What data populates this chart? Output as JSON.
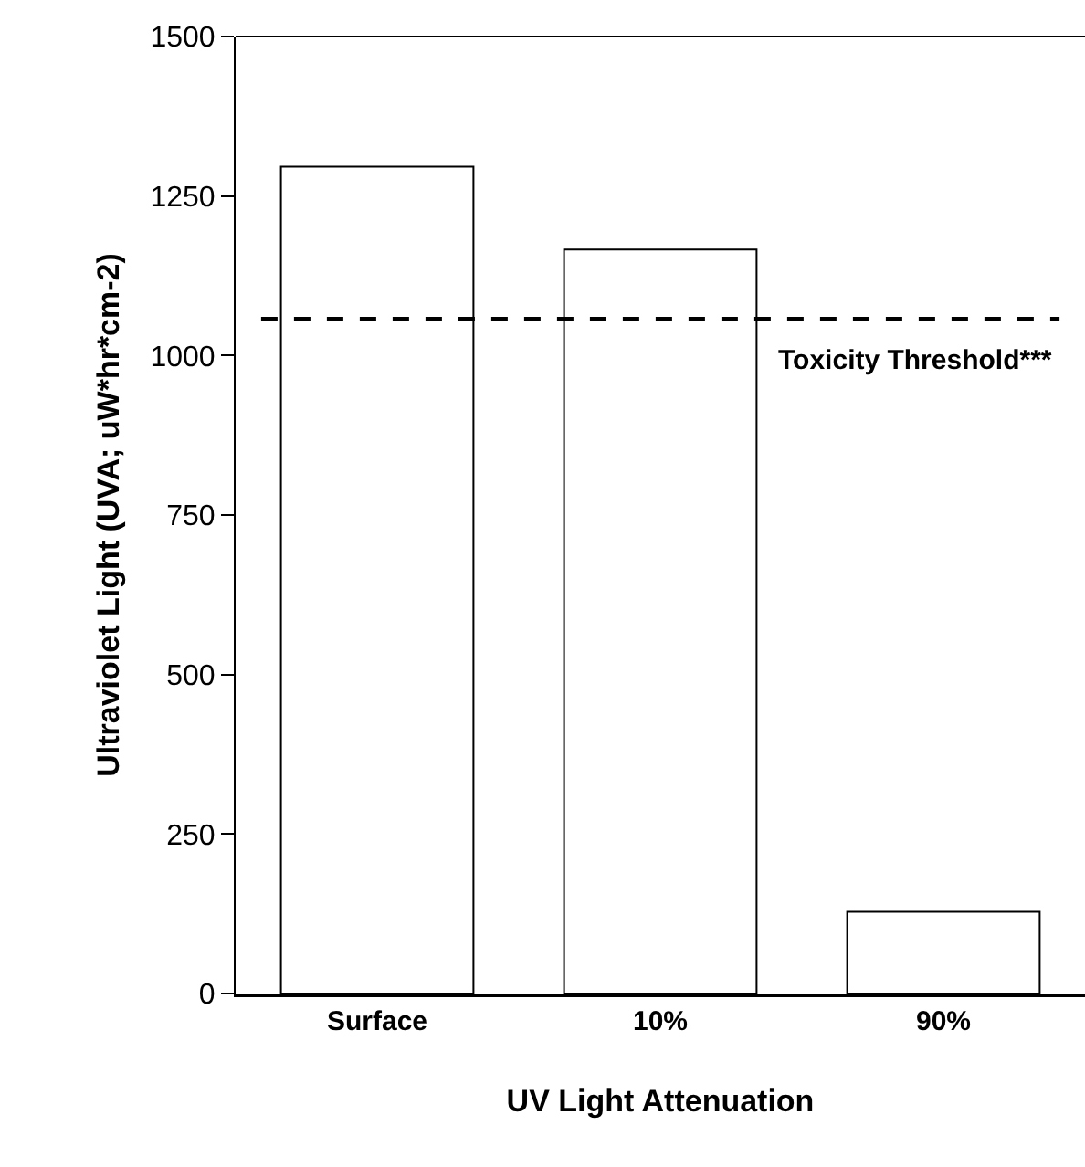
{
  "chart_data": {
    "type": "bar",
    "xlabel": "UV Light Attenuation",
    "ylabel": "Ultraviolet Light (UVA; uW*hr*cm-2)",
    "categories": [
      "Surface",
      "10%",
      "90%"
    ],
    "values": [
      1296,
      1166,
      128
    ],
    "color": "#ffffff",
    "ylim": [
      0,
      1500
    ],
    "yticks": [
      0,
      250,
      500,
      750,
      1000,
      1250,
      1500
    ],
    "legend": false,
    "ref_lines": [
      {
        "axis": "y",
        "value": 1057,
        "label": "Toxicity Threshold***",
        "color": "#000000",
        "line_style": "dashed"
      }
    ]
  }
}
